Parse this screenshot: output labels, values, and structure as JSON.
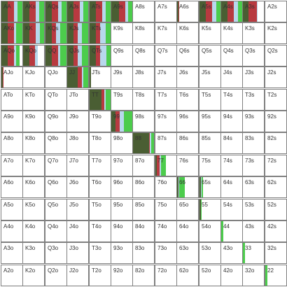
{
  "colors": {
    "dark_green": "#4a5e33",
    "red": "#b83a40",
    "light_blue": "#b7d8ec",
    "green": "#4ccc4c",
    "border": "#808080",
    "label": "#333333"
  },
  "ranks": [
    "A",
    "K",
    "Q",
    "J",
    "T",
    "9",
    "8",
    "7",
    "6",
    "5",
    "4",
    "3",
    "2"
  ],
  "hands": [
    [
      "AA",
      "AKs",
      "AQs",
      "AJs",
      "ATs",
      "A9s",
      "A8s",
      "A7s",
      "A6s",
      "A5s",
      "A4s",
      "A3s",
      "A2s"
    ],
    [
      "AKo",
      "KK",
      "KQs",
      "KJs",
      "KTs",
      "K9s",
      "K8s",
      "K7s",
      "K6s",
      "K5s",
      "K4s",
      "K3s",
      "K2s"
    ],
    [
      "AQo",
      "KQo",
      "QQ",
      "QJs",
      "QTs",
      "Q9s",
      "Q8s",
      "Q7s",
      "Q6s",
      "Q5s",
      "Q4s",
      "Q3s",
      "Q2s"
    ],
    [
      "AJo",
      "KJo",
      "QJo",
      "JJ",
      "JTs",
      "J9s",
      "J8s",
      "J7s",
      "J6s",
      "J5s",
      "J4s",
      "J3s",
      "J2s"
    ],
    [
      "ATo",
      "KTo",
      "QTo",
      "JTo",
      "TT",
      "T9s",
      "T8s",
      "T7s",
      "T6s",
      "T5s",
      "T4s",
      "T3s",
      "T2s"
    ],
    [
      "A9o",
      "K9o",
      "Q9o",
      "J9o",
      "T9o",
      "99",
      "98s",
      "97s",
      "96s",
      "95s",
      "94s",
      "93s",
      "92s"
    ],
    [
      "A8o",
      "K8o",
      "Q8o",
      "J8o",
      "T8o",
      "98o",
      "88",
      "87s",
      "86s",
      "85s",
      "84s",
      "83s",
      "82s"
    ],
    [
      "A7o",
      "K7o",
      "Q7o",
      "J7o",
      "T7o",
      "97o",
      "87o",
      "77",
      "76s",
      "75s",
      "74s",
      "73s",
      "72s"
    ],
    [
      "A6o",
      "K6o",
      "Q6o",
      "J6o",
      "T6o",
      "96o",
      "86o",
      "76o",
      "66",
      "65s",
      "64s",
      "63s",
      "62s"
    ],
    [
      "A5o",
      "K5o",
      "Q5o",
      "J5o",
      "T5o",
      "95o",
      "85o",
      "75o",
      "65o",
      "55",
      "54s",
      "53s",
      "52s"
    ],
    [
      "A4o",
      "K4o",
      "Q4o",
      "J4o",
      "T4o",
      "94o",
      "84o",
      "74o",
      "64o",
      "54o",
      "44",
      "43s",
      "42s"
    ],
    [
      "A3o",
      "K3o",
      "Q3o",
      "J3o",
      "T3o",
      "93o",
      "83o",
      "73o",
      "63o",
      "53o",
      "43o",
      "33",
      "32s"
    ],
    [
      "A2o",
      "K2o",
      "Q2o",
      "J2o",
      "T2o",
      "92o",
      "82o",
      "72o",
      "62o",
      "52o",
      "42o",
      "32o",
      "22"
    ]
  ],
  "frequencies": {
    "AA": {
      "dark_green": 0.3,
      "red": 0.3,
      "light_blue": 0.15,
      "green": 0.25
    },
    "AKs": {
      "dark_green": 0.3,
      "red": 0.3,
      "light_blue": 0.15,
      "green": 0.25
    },
    "AQs": {
      "dark_green": 0.3,
      "red": 0.3,
      "light_blue": 0.15,
      "green": 0.25
    },
    "AJs": {
      "dark_green": 0.3,
      "red": 0.3,
      "light_blue": 0.15,
      "green": 0.25
    },
    "ATs": {
      "dark_green": 0.3,
      "red": 0.3,
      "light_blue": 0.15,
      "green": 0.25
    },
    "A9s": {
      "dark_green": 0.35,
      "red": 0.3,
      "light_blue": 0.15,
      "green": 0.2
    },
    "A6s": {
      "dark_green": 0.05,
      "red": 0.05
    },
    "A5s": {
      "dark_green": 0.3,
      "red": 0.3,
      "light_blue": 0.2,
      "green": 0.2
    },
    "A4s": {
      "dark_green": 0.3,
      "red": 0.3,
      "light_blue": 0.2,
      "green": 0.2
    },
    "A3s": {
      "dark_green": 0.25,
      "red": 0.4,
      "light_blue": 0.05
    },
    "AKo": {
      "dark_green": 0.3,
      "red": 0.3,
      "light_blue": 0.1,
      "green": 0.3
    },
    "KK": {
      "dark_green": 0.3,
      "red": 0.3,
      "light_blue": 0.2,
      "green": 0.2
    },
    "KQs": {
      "dark_green": 0.3,
      "red": 0.2,
      "light_blue": 0.2,
      "green": 0.3
    },
    "KJs": {
      "dark_green": 0.3,
      "red": 0.2,
      "light_blue": 0.2,
      "green": 0.3
    },
    "KTs": {
      "dark_green": 0.3,
      "red": 0.2,
      "light_blue": 0.25,
      "green": 0.25
    },
    "AQo": {
      "dark_green": 0.3,
      "red": 0.3,
      "light_blue": 0.1,
      "green": 0.15
    },
    "KQo": {
      "dark_green": 0.3,
      "red": 0.25,
      "light_blue": 0.15
    },
    "QQ": {
      "dark_green": 0.3,
      "red": 0.3,
      "light_blue": 0.1,
      "green": 0.3
    },
    "QJs": {
      "dark_green": 0.3,
      "red": 0.2,
      "light_blue": 0.2,
      "green": 0.3
    },
    "QTs": {
      "dark_green": 0.3,
      "red": 0.2,
      "light_blue": 0.3,
      "green": 0.2
    },
    "AJo": {
      "dark_green": 0.05,
      "red": 0.05
    },
    "JJ": {
      "dark_green": 0.5,
      "red": 0.2,
      "light_blue": 0.05,
      "green": 0.25
    },
    "JTs": {
      "dark_green": 0.05
    },
    "TT": {
      "dark_green": 0.55,
      "red": 0.15,
      "light_blue": 0.05,
      "green": 0.25
    },
    "99": {
      "dark_green": 0.2,
      "red": 0.2,
      "light_blue": 0.2,
      "green": 0.4
    },
    "88": {
      "dark_green": 0.75,
      "red": 0.05,
      "light_blue": 0.05,
      "green": 0.15
    },
    "77": {
      "dark_green": 0.05,
      "red": 0.15,
      "light_blue": 0.05,
      "green": 0.25
    },
    "66": {
      "dark_green": 0.05,
      "light_blue": 0.05,
      "green": 0.25
    },
    "65s": {
      "dark_green": 0.05,
      "light_blue": 0.05,
      "green": 0.05
    },
    "55": {
      "dark_green": 0.05,
      "green": 0.05
    },
    "44": {
      "green": 0.1
    },
    "33": {
      "green": 0.1
    },
    "22": {
      "green": 0.1
    }
  }
}
